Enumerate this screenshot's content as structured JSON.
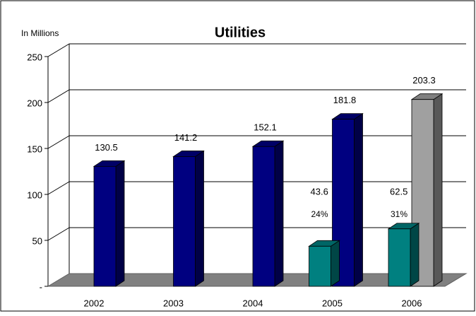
{
  "chart_data": {
    "type": "bar3d",
    "title": "Utilities",
    "y_label": "In Millions",
    "categories": [
      "2002",
      "2003",
      "2004",
      "2005",
      "2006"
    ],
    "series": [
      {
        "color": "#000080",
        "values": [
          130.5,
          141.2,
          152.1,
          181.8,
          null
        ]
      },
      {
        "color": "#a0a0a0",
        "values": [
          null,
          null,
          null,
          null,
          203.3
        ]
      },
      {
        "color": "#008080",
        "values": [
          null,
          null,
          null,
          43.6,
          62.5
        ],
        "secondary": true
      }
    ],
    "percent_labels": [
      null,
      null,
      null,
      "24%",
      "31%"
    ],
    "ylim": [
      0,
      250
    ],
    "yticks": [
      {
        "value": 0,
        "label": "-"
      },
      50,
      100,
      150,
      200,
      250
    ],
    "grid": true
  }
}
